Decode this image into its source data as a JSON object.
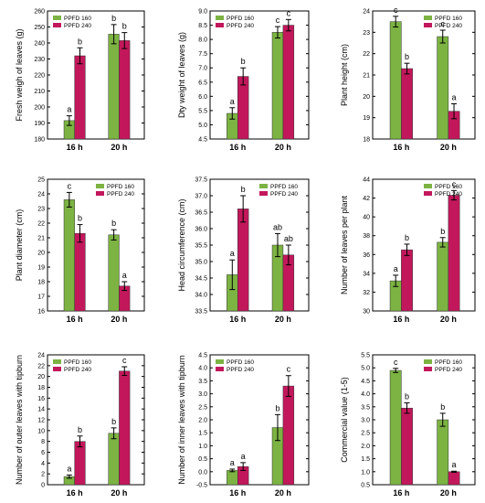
{
  "colors": {
    "ppfd160": "#7CB342",
    "ppfd240": "#C2185B",
    "axis": "#000000"
  },
  "chart_data": [
    {
      "type": "bar",
      "ylabel": "Fresh weigh of leaves (g)",
      "categories": [
        "16 h",
        "20 h"
      ],
      "ylim": [
        180,
        260
      ],
      "yticks": [
        180,
        190,
        200,
        210,
        220,
        230,
        240,
        250,
        260
      ],
      "legend": "top-left",
      "series": [
        {
          "name": "PPFD 160",
          "values": [
            191.5,
            245.5
          ],
          "errors": [
            3,
            6
          ],
          "letters": [
            "a",
            "b"
          ]
        },
        {
          "name": "PPFD 240",
          "values": [
            232,
            241.5
          ],
          "errors": [
            5,
            5
          ],
          "letters": [
            "b",
            "b"
          ]
        }
      ]
    },
    {
      "type": "bar",
      "ylabel": "Dty weight of leaves (g)",
      "categories": [
        "16 h",
        "20 h"
      ],
      "ylim": [
        4.5,
        9.0
      ],
      "yticks": [
        "4.5",
        "5.0",
        "5.5",
        "6.0",
        "6.5",
        "7.0",
        "7.5",
        "8.0",
        "8.5",
        "9.0"
      ],
      "legend": "top-left",
      "series": [
        {
          "name": "PPFD 160",
          "values": [
            5.4,
            8.25
          ],
          "errors": [
            0.2,
            0.2
          ],
          "letters": [
            "a",
            "c"
          ]
        },
        {
          "name": "PPFD 240",
          "values": [
            6.7,
            8.5
          ],
          "errors": [
            0.3,
            0.2
          ],
          "letters": [
            "b",
            "c"
          ]
        }
      ]
    },
    {
      "type": "bar",
      "ylabel": "Plant height (cm)",
      "categories": [
        "16 h",
        "20 h"
      ],
      "ylim": [
        18,
        24
      ],
      "yticks": [
        18,
        19,
        20,
        21,
        22,
        23,
        24
      ],
      "legend": "top-right",
      "series": [
        {
          "name": "PPFD 160",
          "values": [
            23.5,
            22.8
          ],
          "errors": [
            0.25,
            0.3
          ],
          "letters": [
            "c",
            "c"
          ]
        },
        {
          "name": "PPFD 240",
          "values": [
            21.3,
            19.3
          ],
          "errors": [
            0.25,
            0.35
          ],
          "letters": [
            "b",
            "a"
          ]
        }
      ]
    },
    {
      "type": "bar",
      "ylabel": "Plant diameter (cm)",
      "categories": [
        "16 h",
        "20 h"
      ],
      "ylim": [
        16,
        25
      ],
      "yticks": [
        16,
        17,
        18,
        19,
        20,
        21,
        22,
        23,
        24,
        25
      ],
      "legend": "top-right",
      "series": [
        {
          "name": "PPFD 160",
          "values": [
            23.6,
            21.2
          ],
          "errors": [
            0.5,
            0.35
          ],
          "letters": [
            "c",
            "b"
          ]
        },
        {
          "name": "PPFD 240",
          "values": [
            21.3,
            17.7
          ],
          "errors": [
            0.6,
            0.3
          ],
          "letters": [
            "b",
            "a"
          ]
        }
      ]
    },
    {
      "type": "bar",
      "ylabel": "Head circumference (cm)",
      "categories": [
        "16 h",
        "20 h"
      ],
      "ylim": [
        33.5,
        37.5
      ],
      "yticks": [
        "33.5",
        "34.0",
        "34.5",
        "35.0",
        "35.5",
        "36.0",
        "36.5",
        "37.0",
        "37.5"
      ],
      "legend": "top-right",
      "series": [
        {
          "name": "PPFD 160",
          "values": [
            34.6,
            35.5
          ],
          "errors": [
            0.45,
            0.35
          ],
          "letters": [
            "a",
            "ab"
          ]
        },
        {
          "name": "PPFD 240",
          "values": [
            36.6,
            35.2
          ],
          "errors": [
            0.4,
            0.3
          ],
          "letters": [
            "b",
            "ab"
          ]
        }
      ]
    },
    {
      "type": "bar",
      "ylabel": "Number of leaves per plant",
      "categories": [
        "16 h",
        "20 h"
      ],
      "ylim": [
        30,
        44
      ],
      "yticks": [
        30,
        32,
        34,
        36,
        38,
        40,
        42,
        44
      ],
      "legend": "top-right",
      "series": [
        {
          "name": "PPFD 160",
          "values": [
            33.2,
            37.3
          ],
          "errors": [
            0.6,
            0.5
          ],
          "letters": [
            "a",
            "b"
          ]
        },
        {
          "name": "PPFD 240",
          "values": [
            36.5,
            42.3
          ],
          "errors": [
            0.6,
            0.5
          ],
          "letters": [
            "b",
            "c"
          ]
        }
      ]
    },
    {
      "type": "bar",
      "ylabel": "Number of outer leaves with tipburn",
      "categories": [
        "16 h",
        "20 h"
      ],
      "ylim": [
        0,
        24
      ],
      "yticks": [
        0,
        2,
        4,
        6,
        8,
        10,
        12,
        14,
        16,
        18,
        20,
        22,
        24
      ],
      "legend": "top-left",
      "series": [
        {
          "name": "PPFD 160",
          "values": [
            1.5,
            9.5
          ],
          "errors": [
            0.3,
            1.0
          ],
          "letters": [
            "a",
            "b"
          ]
        },
        {
          "name": "PPFD 240",
          "values": [
            8.0,
            21.0
          ],
          "errors": [
            1.0,
            0.8
          ],
          "letters": [
            "b",
            "c"
          ]
        }
      ]
    },
    {
      "type": "bar",
      "ylabel": "Number of inner leaves with tipburn",
      "categories": [
        "16 h",
        "20 h"
      ],
      "ylim": [
        -0.5,
        4.5
      ],
      "yticks": [
        "-0.5",
        "0.0",
        "0.5",
        "1.0",
        "1.5",
        "2.0",
        "2.5",
        "3.0",
        "3.5",
        "4.0",
        "4.5"
      ],
      "legend": "top-left",
      "series": [
        {
          "name": "PPFD 160",
          "values": [
            0.05,
            1.7
          ],
          "errors": [
            0.05,
            0.5
          ],
          "letters": [
            "a",
            "b"
          ]
        },
        {
          "name": "PPFD 240",
          "values": [
            0.2,
            3.3
          ],
          "errors": [
            0.15,
            0.4
          ],
          "letters": [
            "a",
            "c"
          ]
        }
      ]
    },
    {
      "type": "bar",
      "ylabel": "Commercial value (1-5)",
      "categories": [
        "16 h",
        "20 h"
      ],
      "ylim": [
        0.5,
        5.5
      ],
      "yticks": [
        "0.5",
        "1.0",
        "1.5",
        "2.0",
        "2.5",
        "3.0",
        "3.5",
        "4.0",
        "4.5",
        "5.0",
        "5.5"
      ],
      "legend": "top-right",
      "series": [
        {
          "name": "PPFD 160",
          "values": [
            4.9,
            3.0
          ],
          "errors": [
            0.08,
            0.25
          ],
          "letters": [
            "c",
            "b"
          ]
        },
        {
          "name": "PPFD 240",
          "values": [
            3.45,
            1.0
          ],
          "errors": [
            0.2,
            0.02
          ],
          "letters": [
            "b",
            "a"
          ]
        }
      ]
    }
  ]
}
